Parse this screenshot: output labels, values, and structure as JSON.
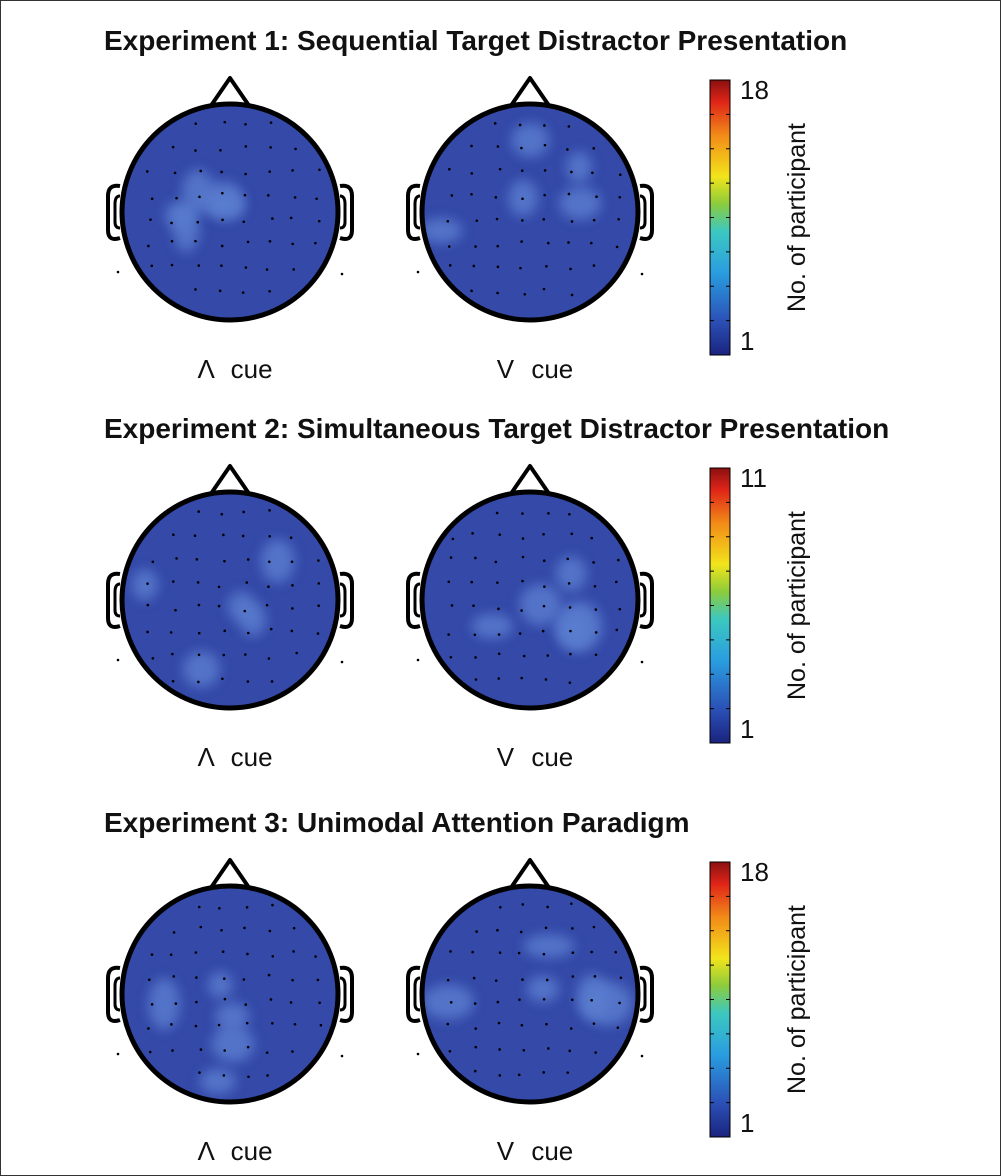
{
  "panels": [
    {
      "title": "Experiment 1: Sequential Target Distractor Presentation",
      "maps": [
        {
          "label": "Λ cue"
        },
        {
          "label": "V cue"
        }
      ],
      "colorbar": {
        "max": 18,
        "min": 1,
        "label": "No. of participant"
      }
    },
    {
      "title": "Experiment 2: Simultaneous Target Distractor Presentation",
      "maps": [
        {
          "label": "Λ cue"
        },
        {
          "label": "V cue"
        }
      ],
      "colorbar": {
        "max": 11,
        "min": 1,
        "label": "No. of participant"
      }
    },
    {
      "title": "Experiment 3: Unimodal Attention Paradigm",
      "maps": [
        {
          "label": "Λ cue"
        },
        {
          "label": "V cue"
        }
      ],
      "colorbar": {
        "max": 18,
        "min": 1,
        "label": "No. of participant"
      }
    }
  ]
}
